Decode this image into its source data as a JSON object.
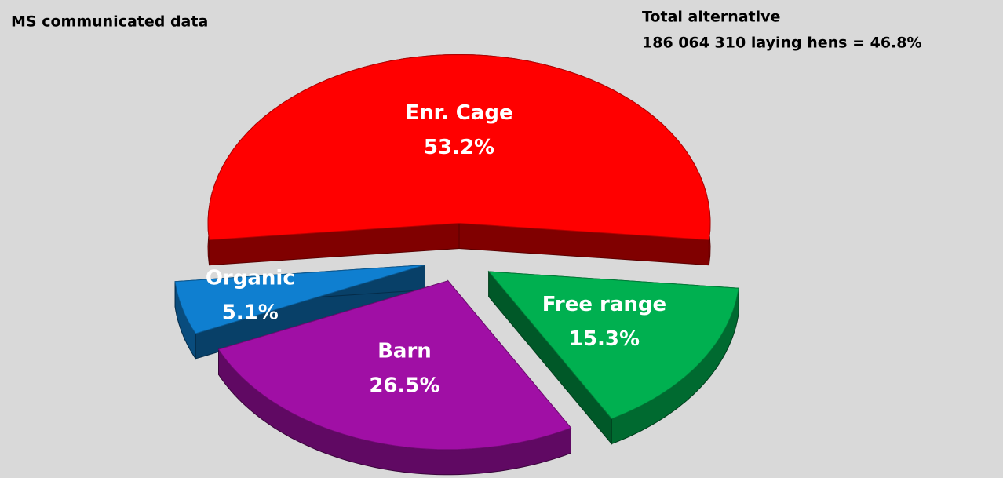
{
  "chart_data": {
    "type": "pie",
    "title": "MS communicated data",
    "annotations": [
      "Total alternative",
      "186 064 310 laying hens = 46.8%"
    ],
    "categories": [
      "Enr. Cage",
      "Free range",
      "Barn",
      "Organic"
    ],
    "values": [
      53.2,
      15.3,
      26.5,
      5.1
    ],
    "value_labels": [
      "53.2%",
      "15.3%",
      "26.5%",
      "5.1%"
    ],
    "colors": [
      "#ff0000",
      "#00b050",
      "#a00fa5",
      "#0f7fd0"
    ]
  }
}
